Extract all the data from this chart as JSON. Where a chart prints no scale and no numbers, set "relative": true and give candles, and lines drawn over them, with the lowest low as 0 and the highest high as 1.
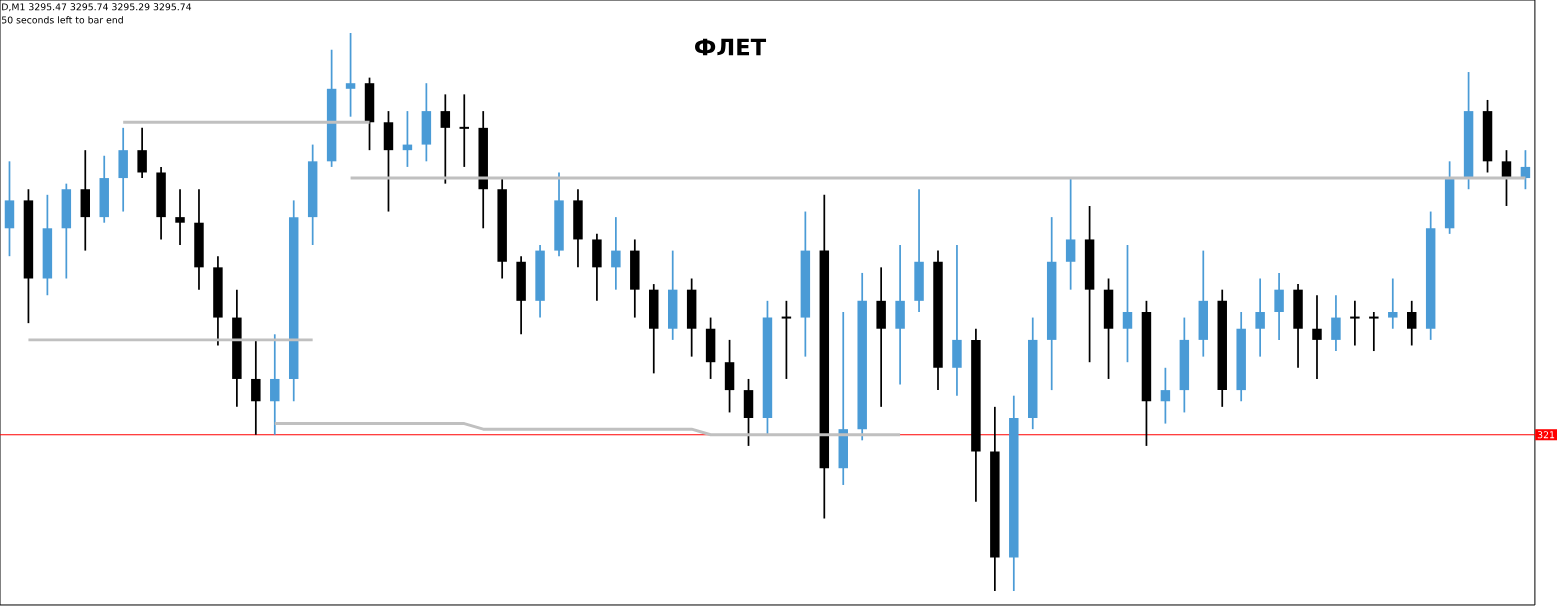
{
  "chart_data": {
    "type": "candlestick",
    "title": "ФЛЕТ",
    "annotations": [
      "D,M1  3295.47 3295.74 3295.29 3295.74",
      "50 seconds left to bar end",
      "321"
    ],
    "relative": true,
    "categories": [
      null,
      null,
      null,
      null,
      null,
      null,
      null,
      null,
      null,
      null,
      null,
      null,
      null,
      null,
      null,
      null,
      null,
      null,
      null,
      null,
      null,
      null,
      null,
      null,
      null,
      null,
      null,
      null,
      null,
      null,
      null,
      null,
      null,
      null,
      null,
      null,
      null,
      null,
      null,
      null,
      null,
      null,
      null,
      null,
      null,
      null,
      null,
      null,
      null,
      null,
      null,
      null,
      null,
      null,
      null,
      null,
      null,
      null,
      null,
      null,
      null,
      null,
      null,
      null,
      null,
      null,
      null,
      null,
      null,
      null,
      null,
      null,
      null,
      null,
      null,
      null,
      null,
      null,
      null,
      null,
      null
    ],
    "ohlc": [
      [
        0.65,
        0.77,
        0.6,
        0.7
      ],
      [
        0.7,
        0.72,
        0.48,
        0.56
      ],
      [
        0.56,
        0.71,
        0.53,
        0.65
      ],
      [
        0.65,
        0.73,
        0.56,
        0.72
      ],
      [
        0.72,
        0.79,
        0.61,
        0.67
      ],
      [
        0.67,
        0.78,
        0.66,
        0.74
      ],
      [
        0.74,
        0.83,
        0.68,
        0.79
      ],
      [
        0.79,
        0.83,
        0.74,
        0.75
      ],
      [
        0.75,
        0.76,
        0.63,
        0.67
      ],
      [
        0.67,
        0.72,
        0.62,
        0.66
      ],
      [
        0.66,
        0.72,
        0.54,
        0.58
      ],
      [
        0.58,
        0.6,
        0.44,
        0.49
      ],
      [
        0.49,
        0.54,
        0.33,
        0.38
      ],
      [
        0.38,
        0.45,
        0.28,
        0.34
      ],
      [
        0.34,
        0.46,
        0.28,
        0.38
      ],
      [
        0.38,
        0.7,
        0.34,
        0.67
      ],
      [
        0.67,
        0.8,
        0.62,
        0.77
      ],
      [
        0.77,
        0.97,
        0.76,
        0.9
      ],
      [
        0.9,
        1.0,
        0.85,
        0.91
      ],
      [
        0.91,
        0.92,
        0.79,
        0.84
      ],
      [
        0.84,
        0.86,
        0.68,
        0.79
      ],
      [
        0.79,
        0.86,
        0.76,
        0.8
      ],
      [
        0.8,
        0.91,
        0.77,
        0.86
      ],
      [
        0.86,
        0.89,
        0.73,
        0.83
      ],
      [
        0.83,
        0.89,
        0.76,
        0.83
      ],
      [
        0.83,
        0.86,
        0.65,
        0.72
      ],
      [
        0.72,
        0.74,
        0.56,
        0.59
      ],
      [
        0.59,
        0.6,
        0.46,
        0.52
      ],
      [
        0.52,
        0.62,
        0.49,
        0.61
      ],
      [
        0.61,
        0.75,
        0.6,
        0.7
      ],
      [
        0.7,
        0.72,
        0.58,
        0.63
      ],
      [
        0.63,
        0.64,
        0.52,
        0.58
      ],
      [
        0.58,
        0.67,
        0.54,
        0.61
      ],
      [
        0.61,
        0.63,
        0.49,
        0.54
      ],
      [
        0.54,
        0.55,
        0.39,
        0.47
      ],
      [
        0.47,
        0.61,
        0.45,
        0.54
      ],
      [
        0.54,
        0.56,
        0.42,
        0.47
      ],
      [
        0.47,
        0.49,
        0.38,
        0.41
      ],
      [
        0.41,
        0.45,
        0.32,
        0.36
      ],
      [
        0.36,
        0.38,
        0.26,
        0.31
      ],
      [
        0.31,
        0.52,
        0.28,
        0.49
      ],
      [
        0.49,
        0.52,
        0.38,
        0.49
      ],
      [
        0.49,
        0.68,
        0.42,
        0.61
      ],
      [
        0.61,
        0.71,
        0.13,
        0.22
      ],
      [
        0.22,
        0.5,
        0.19,
        0.29
      ],
      [
        0.29,
        0.57,
        0.27,
        0.52
      ],
      [
        0.52,
        0.58,
        0.33,
        0.47
      ],
      [
        0.47,
        0.62,
        0.37,
        0.52
      ],
      [
        0.52,
        0.72,
        0.5,
        0.59
      ],
      [
        0.59,
        0.61,
        0.36,
        0.4
      ],
      [
        0.4,
        0.62,
        0.35,
        0.45
      ],
      [
        0.45,
        0.47,
        0.16,
        0.25
      ],
      [
        0.25,
        0.33,
        0.0,
        0.06
      ],
      [
        0.06,
        0.35,
        0.0,
        0.31
      ],
      [
        0.31,
        0.49,
        0.29,
        0.45
      ],
      [
        0.45,
        0.67,
        0.36,
        0.59
      ],
      [
        0.59,
        0.74,
        0.54,
        0.63
      ],
      [
        0.63,
        0.69,
        0.41,
        0.54
      ],
      [
        0.54,
        0.56,
        0.38,
        0.47
      ],
      [
        0.47,
        0.62,
        0.41,
        0.5
      ],
      [
        0.5,
        0.52,
        0.26,
        0.34
      ],
      [
        0.34,
        0.4,
        0.3,
        0.36
      ],
      [
        0.36,
        0.49,
        0.32,
        0.45
      ],
      [
        0.45,
        0.61,
        0.42,
        0.52
      ],
      [
        0.52,
        0.54,
        0.33,
        0.36
      ],
      [
        0.36,
        0.5,
        0.34,
        0.47
      ],
      [
        0.47,
        0.56,
        0.42,
        0.5
      ],
      [
        0.5,
        0.57,
        0.45,
        0.54
      ],
      [
        0.54,
        0.55,
        0.4,
        0.47
      ],
      [
        0.47,
        0.53,
        0.38,
        0.45
      ],
      [
        0.45,
        0.53,
        0.43,
        0.49
      ],
      [
        0.49,
        0.52,
        0.44,
        0.49
      ],
      [
        0.49,
        0.5,
        0.43,
        0.49
      ],
      [
        0.49,
        0.56,
        0.47,
        0.5
      ],
      [
        0.5,
        0.52,
        0.44,
        0.47
      ],
      [
        0.47,
        0.68,
        0.45,
        0.65
      ],
      [
        0.65,
        0.77,
        0.64,
        0.74
      ],
      [
        0.74,
        0.93,
        0.72,
        0.86
      ],
      [
        0.86,
        0.88,
        0.75,
        0.77
      ],
      [
        0.77,
        0.79,
        0.69,
        0.74
      ],
      [
        0.74,
        0.79,
        0.72,
        0.76
      ]
    ],
    "colors": [
      "#4a9bd6",
      "#000000",
      "#4a9bd6",
      "#4a9bd6",
      "#000000",
      "#4a9bd6",
      "#4a9bd6",
      "#000000",
      "#000000",
      "#000000",
      "#000000",
      "#000000",
      "#000000",
      "#000000",
      "#4a9bd6",
      "#4a9bd6",
      "#4a9bd6",
      "#4a9bd6",
      "#4a9bd6",
      "#000000",
      "#000000",
      "#4a9bd6",
      "#4a9bd6",
      "#000000",
      "#000000",
      "#000000",
      "#000000",
      "#000000",
      "#4a9bd6",
      "#4a9bd6",
      "#000000",
      "#000000",
      "#4a9bd6",
      "#000000",
      "#000000",
      "#4a9bd6",
      "#000000",
      "#000000",
      "#000000",
      "#000000",
      "#4a9bd6",
      "#000000",
      "#4a9bd6",
      "#000000",
      "#4a9bd6",
      "#4a9bd6",
      "#000000",
      "#4a9bd6",
      "#4a9bd6",
      "#000000",
      "#4a9bd6",
      "#000000",
      "#000000",
      "#4a9bd6",
      "#4a9bd6",
      "#4a9bd6",
      "#4a9bd6",
      "#000000",
      "#000000",
      "#4a9bd6",
      "#000000",
      "#4a9bd6",
      "#4a9bd6",
      "#4a9bd6",
      "#000000",
      "#4a9bd6",
      "#4a9bd6",
      "#4a9bd6",
      "#000000",
      "#000000",
      "#4a9bd6",
      "#000000",
      "#000000",
      "#4a9bd6",
      "#000000",
      "#4a9bd6",
      "#4a9bd6",
      "#4a9bd6",
      "#000000",
      "#000000",
      "#4a9bd6"
    ],
    "series": [
      {
        "type": "line",
        "color": "#c0c0c0",
        "values": [
          null,
          null,
          null,
          null,
          null,
          null,
          0.84,
          0.84,
          0.84,
          0.84,
          0.84,
          0.84,
          0.84,
          0.84,
          0.84,
          0.84,
          0.84,
          0.84,
          0.84,
          0.84,
          null,
          null,
          null,
          null,
          null,
          null,
          null,
          null,
          null,
          null,
          null,
          null,
          null,
          null,
          null,
          null,
          null,
          null,
          null,
          null,
          null,
          null,
          null,
          null,
          null,
          null,
          null,
          null,
          null,
          null,
          null,
          null,
          null,
          null,
          null,
          null,
          null,
          null,
          null,
          null,
          null,
          null,
          null,
          null,
          null,
          null,
          null,
          null,
          null,
          null,
          null,
          null,
          null,
          null,
          null,
          null,
          null,
          null,
          null,
          null,
          null
        ]
      },
      {
        "type": "line",
        "color": "#c0c0c0",
        "values": [
          null,
          0.45,
          0.45,
          0.45,
          0.45,
          0.45,
          0.45,
          0.45,
          0.45,
          0.45,
          0.45,
          0.45,
          0.45,
          0.45,
          0.45,
          0.45,
          0.45,
          null,
          null,
          null,
          null,
          null,
          null,
          null,
          null,
          null,
          null,
          null,
          null,
          null,
          null,
          null,
          null,
          null,
          null,
          null,
          null,
          null,
          null,
          null,
          null,
          null,
          null,
          null,
          null,
          null,
          null,
          null,
          null,
          null,
          null,
          null,
          null,
          null,
          null,
          null,
          null,
          null,
          null,
          null,
          null,
          null,
          null,
          null,
          null,
          null,
          null,
          null,
          null,
          null,
          null,
          null,
          null,
          null,
          null,
          null,
          null,
          null,
          null,
          null,
          null
        ]
      },
      {
        "type": "line",
        "color": "#c0c0c0",
        "values": [
          null,
          null,
          null,
          null,
          null,
          null,
          null,
          null,
          null,
          null,
          null,
          null,
          null,
          null,
          0.3,
          0.3,
          0.3,
          0.3,
          0.3,
          0.3,
          0.3,
          0.3,
          0.3,
          0.3,
          0.3,
          0.29,
          0.29,
          0.29,
          0.29,
          0.29,
          0.29,
          0.29,
          0.29,
          0.29,
          0.29,
          0.29,
          0.29,
          0.28,
          0.28,
          0.28,
          0.28,
          0.28,
          0.28,
          0.28,
          0.28,
          0.28,
          0.28,
          0.28,
          null,
          null,
          null,
          null,
          null,
          null,
          null,
          null,
          null,
          null,
          null,
          null,
          null,
          null,
          null,
          null,
          null,
          null,
          null,
          null,
          null,
          null,
          null,
          null,
          null,
          null,
          null,
          null,
          null,
          null,
          null,
          null,
          null
        ]
      },
      {
        "type": "line",
        "color": "#c0c0c0",
        "values": [
          null,
          null,
          null,
          null,
          null,
          null,
          null,
          null,
          null,
          null,
          null,
          null,
          null,
          null,
          null,
          null,
          null,
          null,
          0.74,
          0.74,
          0.74,
          0.74,
          0.74,
          0.74,
          0.74,
          0.74,
          0.74,
          0.74,
          0.74,
          0.74,
          0.74,
          0.74,
          0.74,
          0.74,
          0.74,
          0.74,
          0.74,
          0.74,
          0.74,
          0.74,
          0.74,
          0.74,
          0.74,
          0.74,
          0.74,
          0.74,
          0.74,
          0.74,
          0.74,
          0.74,
          0.74,
          0.74,
          0.74,
          0.74,
          0.74,
          0.74,
          0.74,
          0.74,
          0.74,
          0.74,
          0.74,
          0.74,
          0.74,
          0.74,
          0.74,
          0.74,
          0.74,
          0.74,
          0.74,
          0.74,
          0.74,
          0.74,
          0.74,
          0.74,
          0.74,
          0.74,
          0.74,
          0.74,
          0.74,
          0.74,
          0.74
        ]
      }
    ],
    "ref_lines": [
      {
        "axis": "y",
        "value": 0.28,
        "color": "#ff0000"
      }
    ]
  }
}
